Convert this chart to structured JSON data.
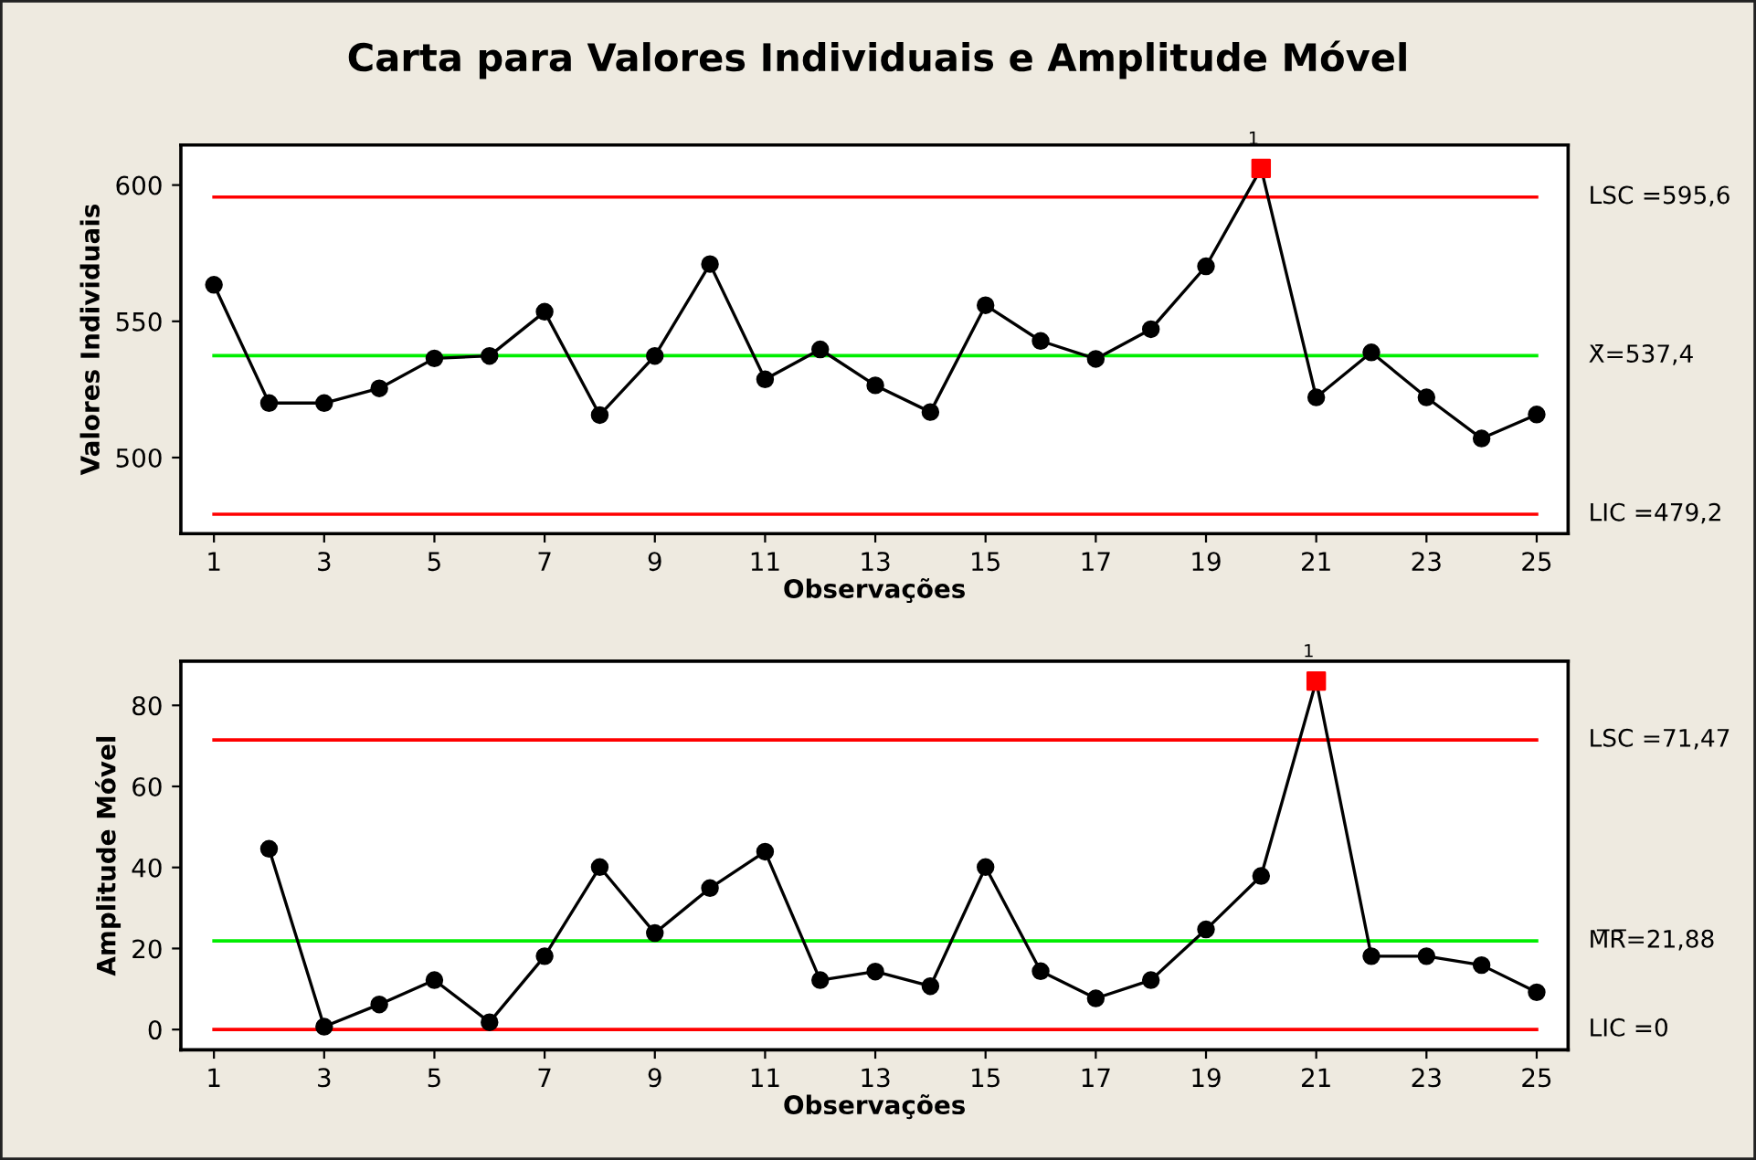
{
  "chart_data": [
    {
      "type": "line",
      "title": "Carta para Valores Individuais e Amplitude Móvel",
      "xlabel": "Observações",
      "ylabel": "Valores Individuais",
      "xlim": [
        0.4,
        25.57
      ],
      "xticks": [
        1,
        3,
        5,
        7,
        9,
        11,
        13,
        15,
        17,
        19,
        21,
        23,
        25
      ],
      "ylim": [
        472.1,
        614.7
      ],
      "yticks": [
        500,
        550,
        600
      ],
      "marker": "circle",
      "line_style": "solid",
      "grid": false,
      "series": [
        {
          "color": "#000000",
          "x": [
            1,
            2,
            3,
            4,
            5,
            6,
            7,
            8,
            9,
            10,
            11,
            12,
            13,
            14,
            15,
            16,
            17,
            18,
            19,
            20,
            21,
            22,
            23,
            24,
            25
          ],
          "values": [
            563.4,
            520,
            520,
            525.4,
            536.4,
            537.3,
            553.5,
            515.6,
            537.3,
            571,
            528.7,
            539.7,
            526.5,
            516.7,
            555.9,
            542.8,
            536.2,
            547.1,
            570.2,
            606.1,
            522.1,
            538.6,
            522.1,
            507,
            515.8
          ]
        },
        {
          "type": "scatter",
          "marker": "square",
          "color": "#ff0000",
          "x": [
            20
          ],
          "values": [
            606.1
          ]
        }
      ],
      "ref_lines": [
        {
          "axis": "y",
          "value": 595.6,
          "label": "LSC =595,6",
          "color": "#ff0000"
        },
        {
          "axis": "y",
          "value": 537.4,
          "label": "X̄=537,4",
          "color": "#00ee00"
        },
        {
          "axis": "y",
          "value": 479.2,
          "label": "LIC =479,2",
          "color": "#ff0000"
        }
      ],
      "annotations": [
        {
          "text": "1",
          "x": 20,
          "y": 606.1
        }
      ]
    },
    {
      "type": "line",
      "xlabel": "Observações",
      "ylabel": "Amplitude Móvel",
      "xlim": [
        0.4,
        25.57
      ],
      "xticks": [
        1,
        3,
        5,
        7,
        9,
        11,
        13,
        15,
        17,
        19,
        21,
        23,
        25
      ],
      "ylim": [
        -5,
        90.9
      ],
      "yticks": [
        0,
        20,
        40,
        60,
        80
      ],
      "marker": "circle",
      "line_style": "solid",
      "grid": false,
      "series": [
        {
          "color": "#000000",
          "x": [
            2,
            3,
            4,
            5,
            6,
            7,
            8,
            9,
            10,
            11,
            12,
            13,
            14,
            15,
            16,
            17,
            18,
            19,
            20,
            21,
            22,
            23,
            24,
            25
          ],
          "values": [
            44.6,
            0.7,
            6.2,
            12.2,
            1.8,
            18.1,
            40.1,
            23.8,
            34.9,
            43.9,
            12.2,
            14.3,
            10.7,
            40.1,
            14.4,
            7.7,
            12.2,
            24.7,
            37.9,
            86,
            18.1,
            18.1,
            15.9,
            9.2
          ]
        },
        {
          "type": "scatter",
          "marker": "square",
          "color": "#ff0000",
          "x": [
            21
          ],
          "values": [
            86
          ]
        }
      ],
      "ref_lines": [
        {
          "axis": "y",
          "value": 71.47,
          "label": "LSC =71,47",
          "color": "#ff0000"
        },
        {
          "axis": "y",
          "value": 21.88,
          "label": "M̅R̅=21,88",
          "color": "#00ee00"
        },
        {
          "axis": "y",
          "value": 0,
          "label": "LIC =0",
          "color": "#ff0000"
        }
      ],
      "annotations": [
        {
          "text": "1",
          "x": 21,
          "y": 86
        }
      ]
    }
  ]
}
